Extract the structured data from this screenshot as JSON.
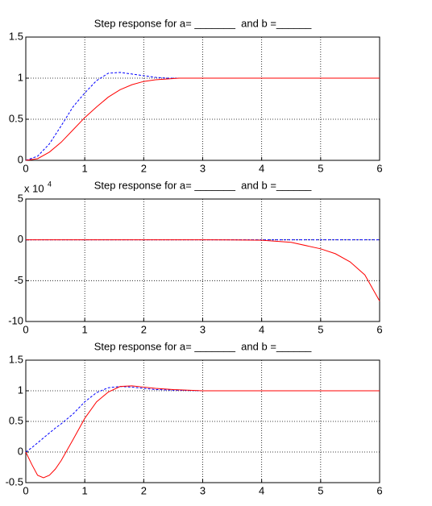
{
  "chart_data": [
    {
      "type": "line",
      "title": "Step response for a= _______  and b =______",
      "x": [
        0,
        0.2,
        0.4,
        0.6,
        0.8,
        1,
        1.2,
        1.4,
        1.6,
        1.8,
        2,
        2.2,
        2.4,
        2.6,
        3,
        3.5,
        4,
        4.5,
        5,
        5.5,
        6
      ],
      "series": [
        {
          "color": "#0000ff",
          "style": "dashed",
          "values": [
            0,
            0.05,
            0.2,
            0.42,
            0.65,
            0.82,
            0.97,
            1.06,
            1.07,
            1.05,
            1.03,
            1.01,
            1.0,
            1.0,
            1.0,
            1.0,
            1.0,
            1.0,
            1.0,
            1.0,
            1.0
          ]
        },
        {
          "color": "#ff0000",
          "style": "solid",
          "values": [
            0,
            0.02,
            0.1,
            0.22,
            0.37,
            0.52,
            0.65,
            0.77,
            0.86,
            0.92,
            0.96,
            0.98,
            0.99,
            1.0,
            1.0,
            1.0,
            1.0,
            1.0,
            1.0,
            1.0,
            1.0
          ]
        }
      ],
      "xlim": [
        0,
        6
      ],
      "xticks": [
        0,
        1,
        2,
        3,
        4,
        5,
        6
      ],
      "ylim": [
        0,
        1.5
      ],
      "yticks": [
        0,
        0.5,
        1,
        1.5
      ],
      "grid": true
    },
    {
      "type": "line",
      "title": "Step response for a= _______  and b =______",
      "y_multiplier": "x 10",
      "y_multiplier_exponent": "4",
      "x": [
        0,
        1,
        2,
        3,
        3.5,
        4,
        4.5,
        5,
        5.25,
        5.5,
        5.75,
        6
      ],
      "series": [
        {
          "color": "#0000ff",
          "style": "dashed",
          "values": [
            0.0001,
            0.0001,
            0.0001,
            0.0001,
            0.0001,
            0.0001,
            0.0001,
            0.0001,
            0.0001,
            0.0001,
            0.0001,
            0.0001
          ]
        },
        {
          "color": "#ff0000",
          "style": "solid",
          "values": [
            0,
            0,
            0,
            0,
            -0.01,
            -0.05,
            -0.3,
            -1.1,
            -1.7,
            -2.7,
            -4.3,
            -7.5
          ]
        }
      ],
      "xlim": [
        0,
        6
      ],
      "xticks": [
        0,
        1,
        2,
        3,
        4,
        5,
        6
      ],
      "ylim": [
        -10,
        5
      ],
      "yticks": [
        -10,
        -5,
        0,
        5
      ],
      "grid": true
    },
    {
      "type": "line",
      "title": "Step response for a= _______  and b =______",
      "x": [
        0,
        0.1,
        0.2,
        0.3,
        0.4,
        0.5,
        0.6,
        0.8,
        1,
        1.2,
        1.4,
        1.6,
        1.8,
        2,
        2.2,
        2.5,
        3,
        3.5,
        4,
        5,
        6
      ],
      "series": [
        {
          "color": "#0000ff",
          "style": "dashed",
          "values": [
            0,
            0.07,
            0.15,
            0.23,
            0.31,
            0.39,
            0.46,
            0.62,
            0.82,
            0.97,
            1.05,
            1.07,
            1.06,
            1.04,
            1.02,
            1.01,
            1.0,
            1.0,
            1.0,
            1.0,
            1.0
          ]
        },
        {
          "color": "#ff0000",
          "style": "solid",
          "values": [
            0,
            -0.2,
            -0.38,
            -0.42,
            -0.38,
            -0.28,
            -0.14,
            0.2,
            0.55,
            0.82,
            0.98,
            1.07,
            1.08,
            1.06,
            1.04,
            1.02,
            1.0,
            1.0,
            1.0,
            1.0,
            1.0
          ]
        }
      ],
      "xlim": [
        0,
        6
      ],
      "xticks": [
        0,
        1,
        2,
        3,
        4,
        5,
        6
      ],
      "ylim": [
        -0.5,
        1.5
      ],
      "yticks": [
        -0.5,
        0,
        0.5,
        1,
        1.5
      ],
      "grid": true
    }
  ]
}
